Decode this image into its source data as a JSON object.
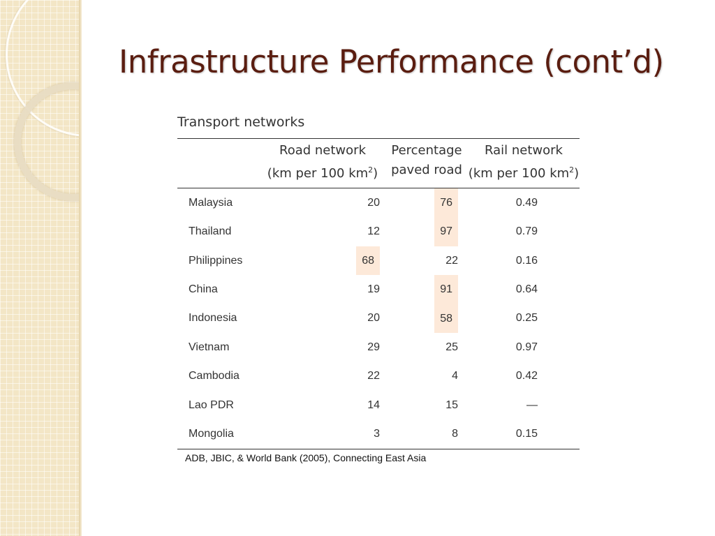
{
  "slide": {
    "title": "Infrastructure Performance (cont’d)",
    "source": "ADB, JBIC, & World Bank (2005), Connecting East Asia"
  },
  "table": {
    "caption": "Transport networks",
    "headers": {
      "road_line1": "Road network",
      "road_line2": "(km per 100 km",
      "paved_line1": "Percentage",
      "paved_line2": "paved road",
      "rail_line1": "Rail network",
      "rail_line2": "(km per 100 km",
      "sup": "2",
      "close_paren": ")"
    },
    "rows": [
      {
        "country": "Malaysia",
        "road": "20",
        "paved": "76",
        "rail": "0.49"
      },
      {
        "country": "Thailand",
        "road": "12",
        "paved": "97",
        "rail": "0.79"
      },
      {
        "country": "Philippines",
        "road": "68",
        "paved": "22",
        "rail": "0.16"
      },
      {
        "country": "China",
        "road": "19",
        "paved": "91",
        "rail": "0.64"
      },
      {
        "country": "Indonesia",
        "road": "20",
        "paved": "58",
        "rail": "0.25"
      },
      {
        "country": "Vietnam",
        "road": "29",
        "paved": "25",
        "rail": "0.97"
      },
      {
        "country": "Cambodia",
        "road": "22",
        "paved": "4",
        "rail": "0.42"
      },
      {
        "country": "Lao PDR",
        "road": "14",
        "paved": "15",
        "rail": "—"
      },
      {
        "country": "Mongolia",
        "road": "3",
        "paved": "8",
        "rail": "0.15"
      }
    ]
  },
  "colors": {
    "title": "#5a1d10",
    "highlight": "#fde9d9",
    "sidebar": "#f3e6c6"
  }
}
